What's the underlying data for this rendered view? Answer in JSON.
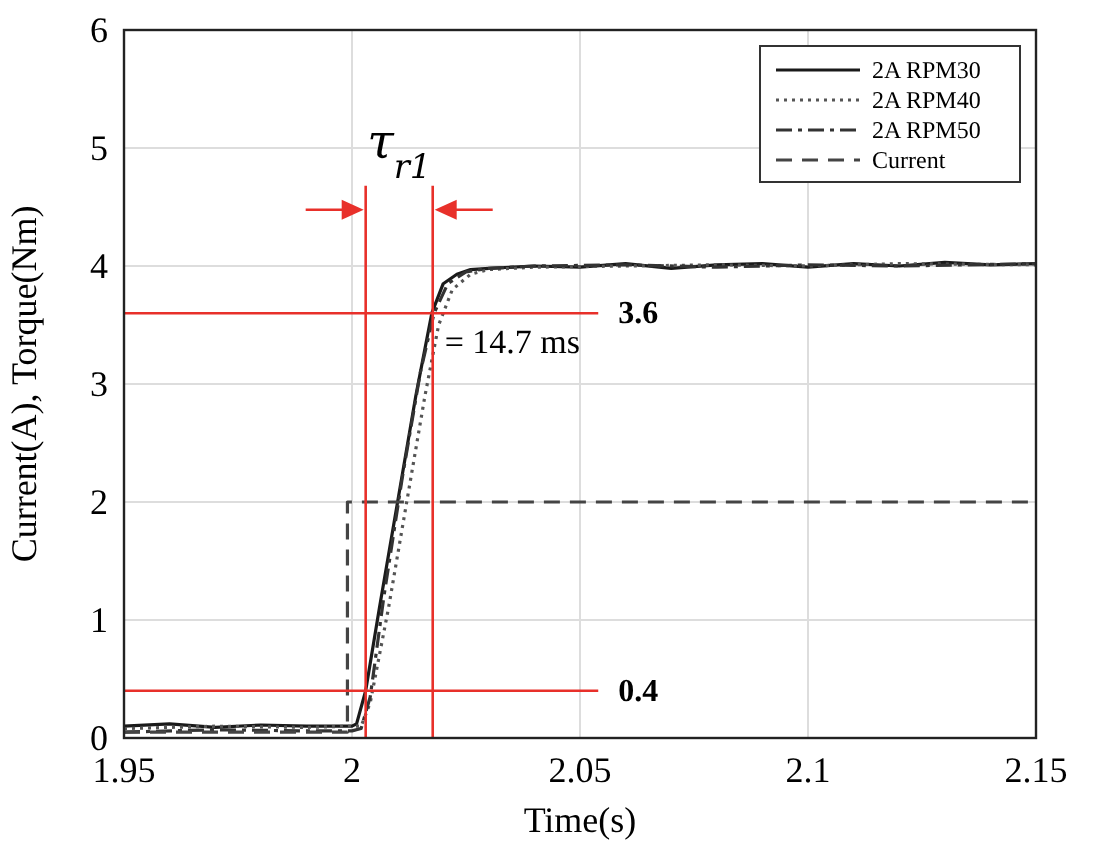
{
  "chart_data": {
    "type": "line",
    "xlabel": "Time(s)",
    "ylabel": "Current(A), Torque(Nm)",
    "xlim": [
      1.95,
      2.15
    ],
    "xticks": [
      1.95,
      2,
      2.05,
      2.1,
      2.15
    ],
    "ylim": [
      0,
      6
    ],
    "yticks": [
      0,
      1,
      2,
      3,
      4,
      5,
      6
    ],
    "grid": true,
    "legend": "top right",
    "series": [
      {
        "name": "2A RPM30",
        "color": "#1a1a1a",
        "line_style": "solid",
        "x": [
          1.95,
          1.96,
          1.97,
          1.98,
          1.99,
          2.0,
          2.001,
          2.003,
          2.006,
          2.01,
          2.014,
          2.0175,
          2.02,
          2.023,
          2.026,
          2.03,
          2.04,
          2.05,
          2.06,
          2.07,
          2.08,
          2.09,
          2.1,
          2.11,
          2.12,
          2.13,
          2.14,
          2.15
        ],
        "values": [
          0.1,
          0.12,
          0.09,
          0.11,
          0.1,
          0.1,
          0.12,
          0.4,
          1.1,
          2.0,
          2.9,
          3.6,
          3.85,
          3.93,
          3.97,
          3.98,
          4.0,
          3.99,
          4.02,
          3.98,
          4.01,
          4.02,
          3.99,
          4.02,
          4.0,
          4.03,
          4.01,
          4.02
        ]
      },
      {
        "name": "2A RPM40",
        "color": "#555555",
        "line_style": "dotted",
        "x": [
          1.95,
          1.97,
          1.99,
          2.0,
          2.002,
          2.004,
          2.008,
          2.012,
          2.016,
          2.019,
          2.022,
          2.026,
          2.03,
          2.04,
          2.06,
          2.08,
          2.1,
          2.12,
          2.15
        ],
        "values": [
          0.08,
          0.1,
          0.09,
          0.1,
          0.1,
          0.3,
          1.1,
          2.0,
          2.9,
          3.5,
          3.8,
          3.93,
          3.97,
          3.99,
          4.0,
          4.01,
          4.0,
          4.02,
          4.01
        ]
      },
      {
        "name": "2A RPM50",
        "color": "#333333",
        "line_style": "dashdot",
        "x": [
          1.95,
          1.97,
          1.99,
          2.0,
          2.002,
          2.004,
          2.007,
          2.011,
          2.015,
          2.018,
          2.021,
          2.025,
          2.03,
          2.04,
          2.06,
          2.08,
          2.1,
          2.12,
          2.15
        ],
        "values": [
          0.05,
          0.07,
          0.06,
          0.06,
          0.08,
          0.35,
          1.2,
          2.2,
          3.1,
          3.6,
          3.85,
          3.95,
          3.98,
          4.0,
          4.01,
          3.99,
          4.01,
          4.0,
          4.02
        ]
      },
      {
        "name": "Current",
        "color": "#444444",
        "line_style": "dashed",
        "x": [
          1.95,
          1.999,
          1.999,
          2.15
        ],
        "values": [
          0.05,
          0.05,
          2.0,
          2.0
        ]
      }
    ],
    "ref_lines": [
      {
        "axis": "y",
        "value": 3.6,
        "label": "3.6",
        "color": "#e8302a"
      },
      {
        "axis": "y",
        "value": 0.4,
        "label": "0.4",
        "color": "#e8302a"
      },
      {
        "axis": "x",
        "value": 2.003,
        "color": "#e8302a"
      },
      {
        "axis": "x",
        "value": 2.0177,
        "color": "#e8302a"
      }
    ],
    "annotations": [
      "τ$_{r1}$",
      "= 14.7 ms"
    ]
  }
}
